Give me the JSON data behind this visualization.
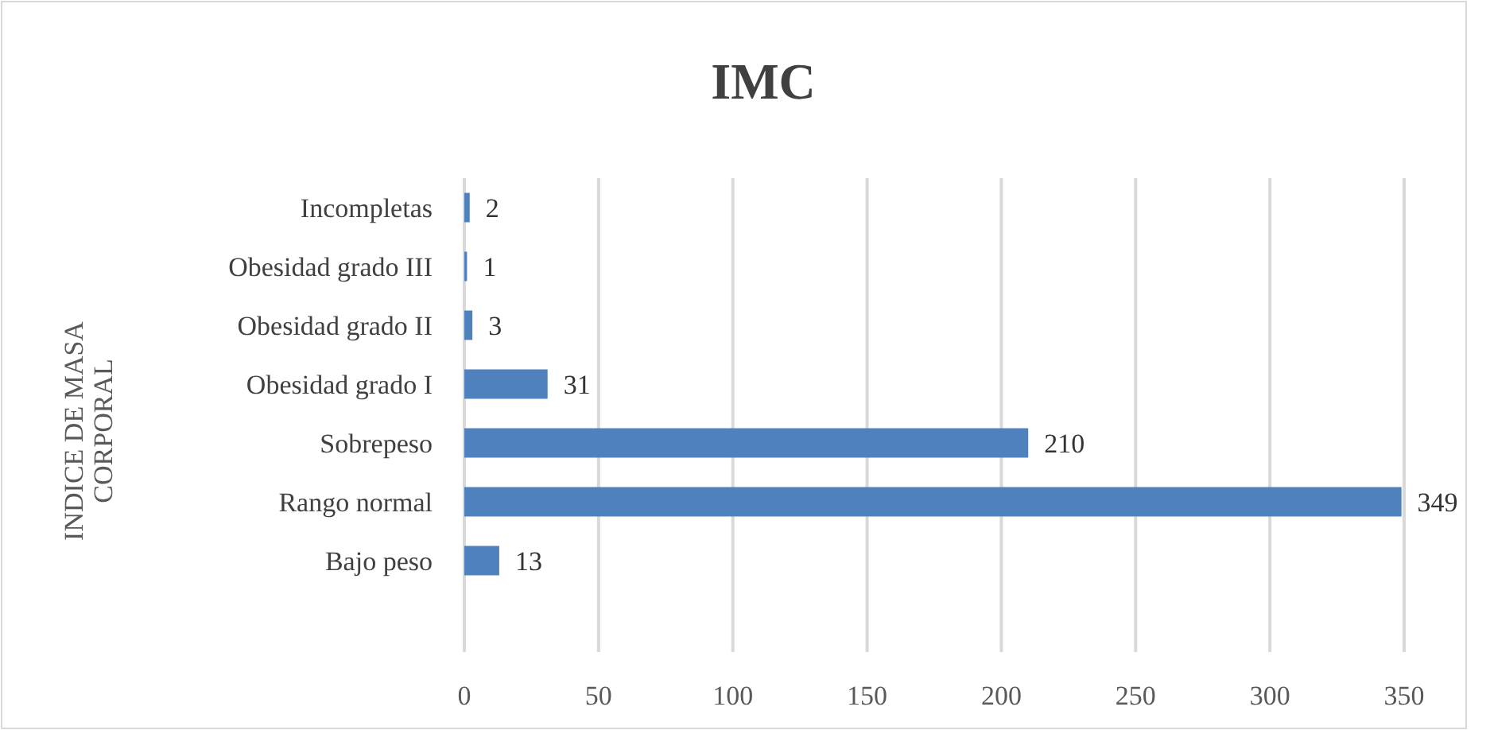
{
  "chart_data": {
    "type": "bar",
    "orientation": "horizontal",
    "title": "IMC",
    "ylabel": "INDICE DE MASA CORPORAL",
    "categories": [
      "Incompletas",
      "Obesidad grado III",
      "Obesidad grado II",
      "Obesidad grado I",
      "Sobrepeso",
      "Rango normal",
      "Bajo peso"
    ],
    "values": [
      2,
      1,
      3,
      31,
      210,
      349,
      13
    ],
    "color": "#4f81bd",
    "xlim": [
      0,
      350
    ],
    "xticks": [
      0,
      50,
      100,
      150,
      200,
      250,
      300,
      350
    ],
    "grid": "x",
    "data_labels": true
  }
}
